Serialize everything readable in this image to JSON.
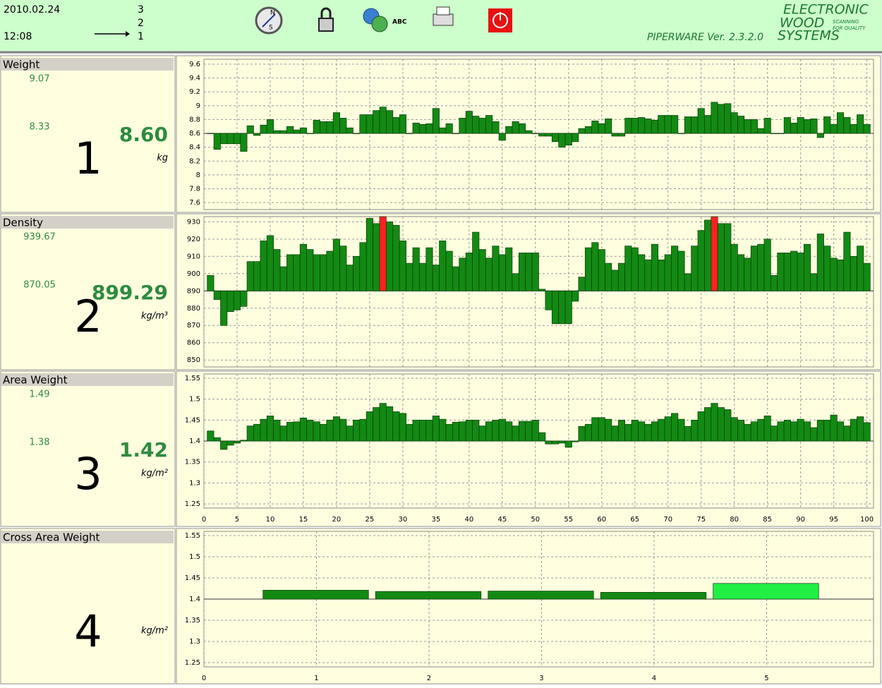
{
  "header": {
    "date": "2010.02.24",
    "time": "12:08",
    "steps": [
      "3",
      "2",
      "1"
    ],
    "icon_label": "ABC",
    "logo": [
      "ELECTRONIC",
      "WOOD",
      "SYSTEMS"
    ],
    "logo_tagline": [
      "SCANNING",
      "FOR QUALITY"
    ],
    "version": "PIPERWARE Ver. 2.3.2.0"
  },
  "chart_data": [
    {
      "type": "bar",
      "title": "Weight",
      "panel": "1",
      "unit": "kg",
      "stats": {
        "max": "9.07",
        "min": "8.33",
        "current": "8.60"
      },
      "baseline": 8.6,
      "color": "#138a13",
      "ylim": [
        7.5,
        9.67
      ],
      "yticks": [
        7.6,
        7.8,
        8,
        8.2,
        8.4,
        8.6,
        8.8,
        9,
        9.2,
        9.4,
        9.6
      ],
      "xlim": [
        0,
        101
      ],
      "xticks": [
        0,
        5,
        10,
        15,
        20,
        25,
        30,
        35,
        40,
        45,
        50,
        55,
        60,
        65,
        70,
        75,
        80,
        85,
        90,
        95,
        100
      ],
      "show_xtick_labels": false,
      "grid": true,
      "values": [
        8.6,
        8.37,
        8.45,
        8.45,
        8.45,
        8.34,
        8.71,
        8.57,
        8.72,
        8.8,
        8.64,
        8.64,
        8.7,
        8.65,
        8.68,
        8.6,
        8.79,
        8.77,
        8.77,
        8.9,
        8.82,
        8.68,
        8.6,
        8.87,
        8.87,
        8.93,
        8.98,
        8.93,
        8.83,
        8.87,
        8.6,
        8.75,
        8.73,
        8.74,
        8.96,
        8.68,
        8.74,
        8.6,
        8.82,
        8.92,
        8.85,
        8.82,
        8.86,
        8.77,
        8.5,
        8.7,
        8.77,
        8.74,
        8.64,
        8.6,
        8.56,
        8.56,
        8.48,
        8.4,
        8.43,
        8.48,
        8.67,
        8.7,
        8.78,
        8.74,
        8.81,
        8.56,
        8.56,
        8.82,
        8.82,
        8.83,
        8.81,
        8.79,
        8.86,
        8.86,
        8.86,
        8.6,
        8.84,
        8.84,
        8.96,
        8.86,
        9.05,
        9.02,
        9.03,
        8.9,
        8.85,
        8.8,
        8.8,
        8.67,
        8.82,
        8.6,
        8.6,
        8.83,
        8.75,
        8.83,
        8.8,
        8.81,
        8.54,
        8.84,
        8.73,
        8.9,
        8.83,
        8.73,
        8.87,
        8.73
      ]
    },
    {
      "type": "bar",
      "title": "Density",
      "panel": "2",
      "unit": "kg/m³",
      "stats": {
        "max": "939.67",
        "min": "870.05",
        "current": "899.29"
      },
      "baseline": 890,
      "color": "#138a13",
      "highlight_color": "#ff2020",
      "highlight_indices": [
        26,
        76
      ],
      "ylim": [
        846,
        933
      ],
      "yticks": [
        850,
        860,
        870,
        880,
        890,
        900,
        910,
        920,
        930
      ],
      "xlim": [
        0,
        101
      ],
      "xticks": [
        0,
        5,
        10,
        15,
        20,
        25,
        30,
        35,
        40,
        45,
        50,
        55,
        60,
        65,
        70,
        75,
        80,
        85,
        90,
        95,
        100
      ],
      "show_xtick_labels": false,
      "grid": true,
      "values": [
        899,
        885,
        870,
        878,
        879,
        881,
        907,
        907,
        919,
        922,
        914,
        904,
        911,
        911,
        917,
        914,
        911,
        911,
        913,
        920,
        916,
        905,
        910,
        918,
        932,
        929,
        933,
        930,
        928,
        919,
        906,
        915,
        906,
        915,
        905,
        919,
        913,
        904,
        909,
        912,
        924,
        914,
        909,
        916,
        911,
        915,
        900,
        912,
        912,
        912,
        891,
        879,
        871,
        871,
        871,
        884,
        898,
        915,
        918,
        914,
        906,
        902,
        906,
        916,
        915,
        911,
        908,
        917,
        908,
        911,
        916,
        913,
        900,
        916,
        925,
        931,
        933,
        929,
        929,
        917,
        911,
        909,
        916,
        917,
        920,
        899,
        912,
        912,
        913,
        912,
        917,
        900,
        923,
        916,
        909,
        908,
        924,
        910,
        916,
        906
      ]
    },
    {
      "type": "bar",
      "title": "Area Weight",
      "panel": "3",
      "unit": "kg/m²",
      "stats": {
        "max": "1.49",
        "min": "1.38",
        "current": "1.42"
      },
      "baseline": 1.4,
      "color": "#138a13",
      "ylim": [
        1.24,
        1.56
      ],
      "yticks": [
        1.25,
        1.3,
        1.35,
        1.4,
        1.45,
        1.5,
        1.55
      ],
      "xlim": [
        0,
        101
      ],
      "xticks": [
        0,
        5,
        10,
        15,
        20,
        25,
        30,
        35,
        40,
        45,
        50,
        55,
        60,
        65,
        70,
        75,
        80,
        85,
        90,
        95,
        100
      ],
      "show_xtick_labels": true,
      "grid": true,
      "values": [
        1.424,
        1.408,
        1.38,
        1.39,
        1.395,
        1.402,
        1.436,
        1.44,
        1.452,
        1.46,
        1.45,
        1.436,
        1.445,
        1.446,
        1.455,
        1.45,
        1.446,
        1.44,
        1.45,
        1.458,
        1.452,
        1.436,
        1.45,
        1.452,
        1.47,
        1.48,
        1.49,
        1.482,
        1.47,
        1.466,
        1.44,
        1.45,
        1.45,
        1.45,
        1.46,
        1.452,
        1.44,
        1.445,
        1.446,
        1.45,
        1.45,
        1.436,
        1.446,
        1.45,
        1.452,
        1.446,
        1.436,
        1.447,
        1.447,
        1.45,
        1.42,
        1.393,
        1.393,
        1.395,
        1.385,
        1.398,
        1.435,
        1.44,
        1.456,
        1.456,
        1.452,
        1.436,
        1.45,
        1.44,
        1.45,
        1.446,
        1.44,
        1.446,
        1.452,
        1.458,
        1.466,
        1.452,
        1.435,
        1.45,
        1.47,
        1.48,
        1.49,
        1.48,
        1.475,
        1.456,
        1.45,
        1.44,
        1.446,
        1.452,
        1.46,
        1.436,
        1.446,
        1.45,
        1.446,
        1.452,
        1.446,
        1.432,
        1.45,
        1.45,
        1.462,
        1.446,
        1.436,
        1.452,
        1.458,
        1.444
      ]
    },
    {
      "type": "bar",
      "title": "Cross Area Weight",
      "panel": "4",
      "unit": "kg/m²",
      "baseline": 1.4,
      "ylim": [
        1.24,
        1.56
      ],
      "yticks": [
        1.25,
        1.3,
        1.35,
        1.4,
        1.45,
        1.5,
        1.55
      ],
      "xlim": [
        0,
        5.95
      ],
      "xticks": [
        0,
        1,
        2,
        3,
        4,
        5
      ],
      "show_xtick_labels": true,
      "grid": true,
      "x": [
        1,
        2,
        3,
        4,
        5
      ],
      "values": [
        1.421,
        1.418,
        1.419,
        1.416,
        1.437
      ],
      "colors": [
        "#138a13",
        "#138a13",
        "#138a13",
        "#138a13",
        "#22ee44"
      ]
    }
  ]
}
